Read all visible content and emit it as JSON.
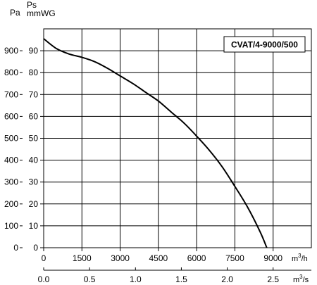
{
  "chart_data": {
    "type": "line",
    "model_label": "CVAT/4-9000/500",
    "axis_pa_title": "Pa",
    "axis_ps_title_top": "Ps",
    "axis_ps_title_bottom": "mmWG",
    "flow_m3h_ticks": [
      "0",
      "1500",
      "3000",
      "4500",
      "6000",
      "7500",
      "9000"
    ],
    "flow_m3h_unit": "m",
    "flow_m3h_unit_sup": "3",
    "flow_m3h_unit_tail": "/h",
    "flow_m3s_ticks": [
      "0.0",
      "0.5",
      "1.0",
      "1.5",
      "2.0",
      "2.5"
    ],
    "flow_m3s_unit": "m",
    "flow_m3s_unit_sup": "3",
    "flow_m3s_unit_tail": "/s",
    "pa_ticks": [
      "0",
      "100",
      "200",
      "300",
      "400",
      "500",
      "600",
      "700",
      "800",
      "900"
    ],
    "mmwg_ticks": [
      "0",
      "10",
      "20",
      "30",
      "40",
      "50",
      "60",
      "70",
      "80",
      "90"
    ],
    "xlim_m3h": [
      0,
      10500
    ],
    "ylim_mmwg": [
      0,
      100
    ],
    "grid": true,
    "series": [
      {
        "x": [
          0,
          500,
          1000,
          1500,
          2000,
          2500,
          3000,
          3500,
          4000,
          4500,
          5000,
          5500,
          6000,
          6500,
          7000,
          7500,
          8000,
          8500,
          8750
        ],
        "y": [
          95.5,
          91,
          88.5,
          87,
          85,
          82,
          78.5,
          75,
          71,
          67,
          62,
          57,
          51,
          44.5,
          37,
          28,
          18.5,
          7,
          0
        ],
        "color": "#000000"
      }
    ]
  }
}
